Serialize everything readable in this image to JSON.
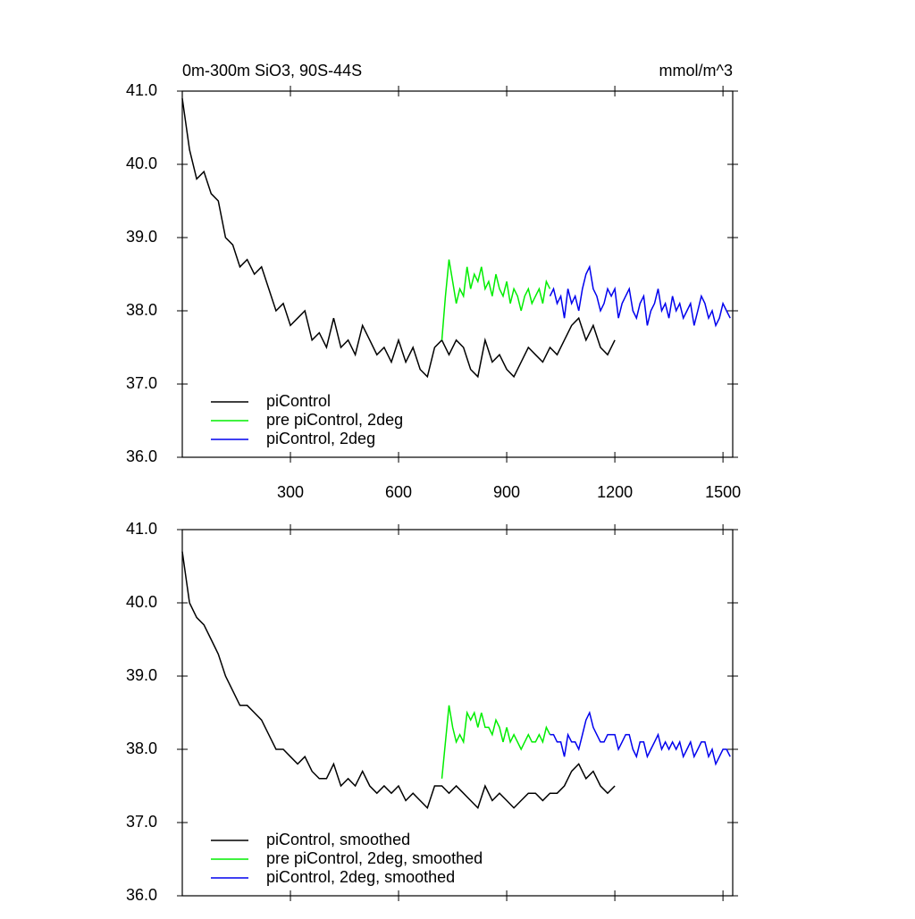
{
  "chart_data": [
    {
      "type": "line",
      "title": "0m-300m SiO3, 90S-44S",
      "units": "mmol/m^3",
      "xlim": [
        0,
        1527
      ],
      "xticks": [
        300,
        600,
        900,
        1200,
        1500
      ],
      "show_xtick_labels": true,
      "ylim": [
        36,
        41
      ],
      "yticks": [
        {
          "value": 36,
          "label": "36.0"
        },
        {
          "value": 37,
          "label": "37.0"
        },
        {
          "value": 38,
          "label": "38.0"
        },
        {
          "value": 39,
          "label": "39.0"
        },
        {
          "value": 40,
          "label": "40.0"
        },
        {
          "value": 41,
          "label": "41.0"
        }
      ],
      "legend": "lower left",
      "series": [
        {
          "name": "piControl",
          "color": "#000000",
          "x": [
            0,
            20,
            40,
            60,
            80,
            100,
            120,
            140,
            160,
            180,
            200,
            220,
            240,
            260,
            280,
            300,
            320,
            340,
            360,
            380,
            400,
            420,
            440,
            460,
            480,
            500,
            520,
            540,
            560,
            580,
            600,
            620,
            640,
            660,
            680,
            700,
            720,
            740,
            760,
            780,
            800,
            820,
            840,
            860,
            880,
            900,
            920,
            940,
            960,
            980,
            1000,
            1020,
            1040,
            1060,
            1080,
            1100,
            1120,
            1140,
            1160,
            1180,
            1200
          ],
          "values": [
            40.9,
            40.2,
            39.8,
            39.9,
            39.6,
            39.5,
            39.0,
            38.9,
            38.6,
            38.7,
            38.5,
            38.6,
            38.3,
            38.0,
            38.1,
            37.8,
            37.9,
            38.0,
            37.6,
            37.7,
            37.5,
            37.9,
            37.5,
            37.6,
            37.4,
            37.8,
            37.6,
            37.4,
            37.5,
            37.3,
            37.6,
            37.3,
            37.5,
            37.2,
            37.1,
            37.5,
            37.6,
            37.4,
            37.6,
            37.5,
            37.2,
            37.1,
            37.6,
            37.3,
            37.4,
            37.2,
            37.1,
            37.3,
            37.5,
            37.4,
            37.3,
            37.5,
            37.4,
            37.6,
            37.8,
            37.9,
            37.6,
            37.8,
            37.5,
            37.4,
            37.6
          ]
        },
        {
          "name": "pre piControl, 2deg",
          "color": "#00ee00",
          "x": [
            720,
            730,
            740,
            750,
            760,
            770,
            780,
            790,
            800,
            810,
            820,
            830,
            840,
            850,
            860,
            870,
            880,
            890,
            900,
            910,
            920,
            930,
            940,
            950,
            960,
            970,
            980,
            990,
            1000,
            1010,
            1020
          ],
          "values": [
            37.6,
            38.2,
            38.7,
            38.4,
            38.1,
            38.3,
            38.2,
            38.6,
            38.3,
            38.5,
            38.4,
            38.6,
            38.3,
            38.4,
            38.2,
            38.5,
            38.3,
            38.2,
            38.4,
            38.1,
            38.3,
            38.2,
            38.0,
            38.2,
            38.3,
            38.1,
            38.2,
            38.3,
            38.1,
            38.4,
            38.3
          ]
        },
        {
          "name": "piControl, 2deg",
          "color": "#0000ee",
          "x": [
            1020,
            1030,
            1040,
            1050,
            1060,
            1070,
            1080,
            1090,
            1100,
            1110,
            1120,
            1130,
            1140,
            1150,
            1160,
            1170,
            1180,
            1190,
            1200,
            1210,
            1220,
            1230,
            1240,
            1250,
            1260,
            1270,
            1280,
            1290,
            1300,
            1310,
            1320,
            1330,
            1340,
            1350,
            1360,
            1370,
            1380,
            1390,
            1400,
            1410,
            1420,
            1430,
            1440,
            1450,
            1460,
            1470,
            1480,
            1490,
            1500,
            1510,
            1520
          ],
          "values": [
            38.2,
            38.3,
            38.1,
            38.2,
            37.9,
            38.3,
            38.1,
            38.2,
            38.0,
            38.3,
            38.5,
            38.6,
            38.3,
            38.2,
            38.0,
            38.1,
            38.3,
            38.2,
            38.3,
            37.9,
            38.1,
            38.2,
            38.3,
            38.0,
            37.9,
            38.1,
            38.2,
            37.8,
            38.0,
            38.1,
            38.3,
            38.0,
            38.1,
            37.9,
            38.2,
            38.0,
            38.1,
            37.9,
            38.0,
            38.1,
            37.8,
            38.0,
            38.2,
            38.1,
            37.9,
            38.0,
            37.8,
            37.9,
            38.1,
            38.0,
            37.9
          ]
        }
      ]
    },
    {
      "type": "line",
      "xlim": [
        0,
        1527
      ],
      "xticks": [
        300,
        600,
        900,
        1200,
        1500
      ],
      "show_xtick_labels": false,
      "ylim": [
        36,
        41
      ],
      "yticks": [
        {
          "value": 36,
          "label": "36.0"
        },
        {
          "value": 37,
          "label": "37.0"
        },
        {
          "value": 38,
          "label": "38.0"
        },
        {
          "value": 39,
          "label": "39.0"
        },
        {
          "value": 40,
          "label": "40.0"
        },
        {
          "value": 41,
          "label": "41.0"
        }
      ],
      "legend": "lower left",
      "series": [
        {
          "name": "piControl, smoothed",
          "color": "#000000",
          "x": [
            0,
            20,
            40,
            60,
            80,
            100,
            120,
            140,
            160,
            180,
            200,
            220,
            240,
            260,
            280,
            300,
            320,
            340,
            360,
            380,
            400,
            420,
            440,
            460,
            480,
            500,
            520,
            540,
            560,
            580,
            600,
            620,
            640,
            660,
            680,
            700,
            720,
            740,
            760,
            780,
            800,
            820,
            840,
            860,
            880,
            900,
            920,
            940,
            960,
            980,
            1000,
            1020,
            1040,
            1060,
            1080,
            1100,
            1120,
            1140,
            1160,
            1180,
            1200
          ],
          "values": [
            40.7,
            40.0,
            39.8,
            39.7,
            39.5,
            39.3,
            39.0,
            38.8,
            38.6,
            38.6,
            38.5,
            38.4,
            38.2,
            38.0,
            38.0,
            37.9,
            37.8,
            37.9,
            37.7,
            37.6,
            37.6,
            37.8,
            37.5,
            37.6,
            37.5,
            37.7,
            37.5,
            37.4,
            37.5,
            37.4,
            37.5,
            37.3,
            37.4,
            37.3,
            37.2,
            37.5,
            37.5,
            37.4,
            37.5,
            37.4,
            37.3,
            37.2,
            37.5,
            37.3,
            37.4,
            37.3,
            37.2,
            37.3,
            37.4,
            37.4,
            37.3,
            37.4,
            37.4,
            37.5,
            37.7,
            37.8,
            37.6,
            37.7,
            37.5,
            37.4,
            37.5
          ]
        },
        {
          "name": "pre piControl, 2deg, smoothed",
          "color": "#00ee00",
          "x": [
            720,
            730,
            740,
            750,
            760,
            770,
            780,
            790,
            800,
            810,
            820,
            830,
            840,
            850,
            860,
            870,
            880,
            890,
            900,
            910,
            920,
            930,
            940,
            950,
            960,
            970,
            980,
            990,
            1000,
            1010,
            1020
          ],
          "values": [
            37.6,
            38.1,
            38.6,
            38.3,
            38.1,
            38.2,
            38.1,
            38.5,
            38.4,
            38.5,
            38.3,
            38.5,
            38.3,
            38.3,
            38.2,
            38.4,
            38.3,
            38.1,
            38.3,
            38.1,
            38.2,
            38.1,
            38.0,
            38.1,
            38.2,
            38.1,
            38.1,
            38.2,
            38.1,
            38.3,
            38.2
          ]
        },
        {
          "name": "piControl, 2deg, smoothed",
          "color": "#0000ee",
          "x": [
            1020,
            1030,
            1040,
            1050,
            1060,
            1070,
            1080,
            1090,
            1100,
            1110,
            1120,
            1130,
            1140,
            1150,
            1160,
            1170,
            1180,
            1190,
            1200,
            1210,
            1220,
            1230,
            1240,
            1250,
            1260,
            1270,
            1280,
            1290,
            1300,
            1310,
            1320,
            1330,
            1340,
            1350,
            1360,
            1370,
            1380,
            1390,
            1400,
            1410,
            1420,
            1430,
            1440,
            1450,
            1460,
            1470,
            1480,
            1490,
            1500,
            1510,
            1520
          ],
          "values": [
            38.2,
            38.2,
            38.1,
            38.1,
            37.9,
            38.2,
            38.1,
            38.1,
            38.0,
            38.2,
            38.4,
            38.5,
            38.3,
            38.2,
            38.1,
            38.1,
            38.2,
            38.2,
            38.2,
            38.0,
            38.1,
            38.2,
            38.2,
            38.0,
            37.9,
            38.1,
            38.1,
            37.9,
            38.0,
            38.1,
            38.2,
            38.0,
            38.1,
            38.0,
            38.1,
            38.0,
            38.1,
            37.9,
            38.0,
            38.1,
            37.9,
            38.0,
            38.1,
            38.1,
            37.9,
            38.0,
            37.8,
            37.9,
            38.0,
            38.0,
            37.9
          ]
        }
      ]
    }
  ]
}
